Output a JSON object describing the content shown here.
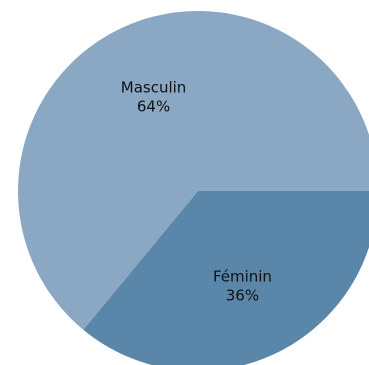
{
  "chart_data": {
    "type": "pie",
    "title": "",
    "slices": [
      {
        "label": "Masculin",
        "value": 64,
        "percent_label": "64%",
        "color": "#8aa7c4"
      },
      {
        "label": "Féminin",
        "value": 36,
        "percent_label": "36%",
        "color": "#5a86aa"
      }
    ],
    "legend": "none"
  }
}
